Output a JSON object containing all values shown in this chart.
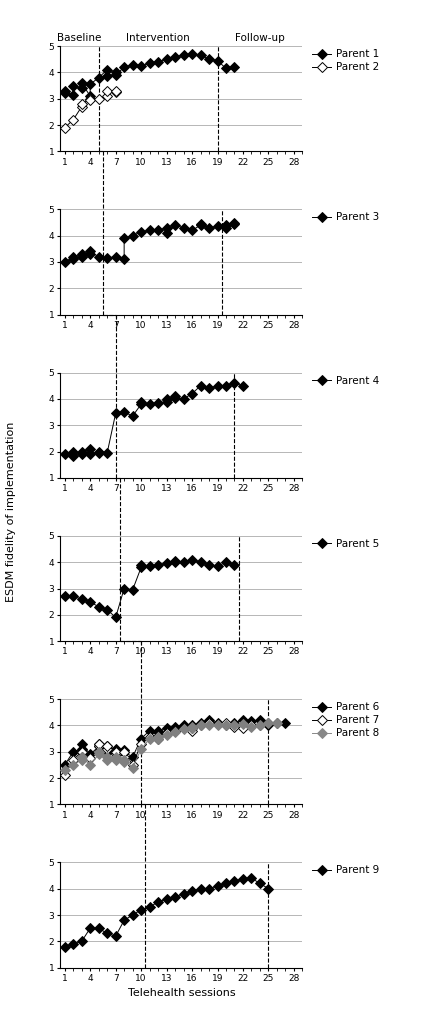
{
  "panels": [
    {
      "id": 1,
      "baseline_end": 5.0,
      "followup_start": 19.0,
      "bracket_x": 5.0,
      "series": [
        {
          "label": "Parent 1",
          "filled": true,
          "color": "black",
          "x": [
            1,
            1,
            2,
            2,
            3,
            3,
            4,
            4,
            5,
            6,
            6,
            7,
            7,
            8,
            9,
            10,
            11,
            12,
            13,
            14,
            15,
            16,
            17,
            18,
            19,
            20,
            21
          ],
          "y": [
            3.3,
            3.2,
            3.15,
            3.5,
            3.4,
            3.6,
            3.1,
            3.55,
            3.8,
            4.1,
            3.85,
            4.0,
            3.9,
            4.2,
            4.3,
            4.25,
            4.35,
            4.4,
            4.5,
            4.6,
            4.65,
            4.7,
            4.65,
            4.5,
            4.45,
            4.15,
            4.2
          ]
        },
        {
          "label": "Parent 2",
          "filled": false,
          "color": "black",
          "x": [
            1,
            2,
            3,
            3,
            4,
            4,
            5,
            6,
            6,
            7,
            7
          ],
          "y": [
            1.9,
            2.2,
            2.7,
            2.8,
            3.0,
            2.95,
            3.0,
            3.1,
            3.3,
            3.25,
            3.3
          ]
        }
      ],
      "ylim": [
        1,
        5
      ],
      "yticks": [
        1,
        2,
        3,
        4,
        5
      ],
      "show_top_labels": true,
      "legend_labels": [
        "Parent 1",
        "Parent 2"
      ],
      "legend_filled": [
        true,
        false
      ],
      "legend_gray": [
        false,
        false
      ]
    },
    {
      "id": 2,
      "baseline_end": 5.5,
      "followup_start": 19.5,
      "bracket_x": 5.5,
      "series": [
        {
          "label": "Parent 3",
          "filled": true,
          "color": "black",
          "x": [
            1,
            2,
            2,
            3,
            3,
            4,
            4,
            5,
            6,
            7,
            8,
            8,
            9,
            10,
            11,
            12,
            13,
            13,
            14,
            15,
            16,
            17,
            17,
            18,
            19,
            20,
            20,
            21,
            21
          ],
          "y": [
            3.0,
            3.1,
            3.2,
            3.3,
            3.2,
            3.3,
            3.4,
            3.2,
            3.15,
            3.2,
            3.1,
            3.9,
            4.0,
            4.15,
            4.2,
            4.2,
            4.3,
            4.1,
            4.4,
            4.3,
            4.2,
            4.4,
            4.45,
            4.3,
            4.35,
            4.3,
            4.4,
            4.5,
            4.45
          ]
        }
      ],
      "ylim": [
        1,
        5
      ],
      "yticks": [
        1,
        2,
        3,
        4,
        5
      ],
      "show_top_labels": false,
      "legend_labels": [
        "Parent 3"
      ],
      "legend_filled": [
        true
      ],
      "legend_gray": [
        false
      ]
    },
    {
      "id": 3,
      "baseline_end": 7.0,
      "followup_start": 21.0,
      "bracket_x": 7.0,
      "series": [
        {
          "label": "Parent 4",
          "filled": true,
          "color": "black",
          "x": [
            1,
            2,
            2,
            3,
            3,
            4,
            4,
            5,
            5,
            6,
            7,
            8,
            9,
            10,
            10,
            11,
            12,
            13,
            13,
            14,
            14,
            15,
            16,
            17,
            18,
            19,
            20,
            21,
            22
          ],
          "y": [
            1.9,
            2.0,
            1.85,
            1.9,
            2.0,
            2.1,
            1.9,
            2.0,
            1.95,
            1.95,
            3.45,
            3.5,
            3.35,
            3.8,
            3.9,
            3.8,
            3.85,
            4.0,
            3.9,
            4.1,
            4.05,
            4.0,
            4.2,
            4.5,
            4.4,
            4.5,
            4.5,
            4.6,
            4.5
          ]
        }
      ],
      "ylim": [
        1,
        5
      ],
      "yticks": [
        1,
        2,
        3,
        4,
        5
      ],
      "show_top_labels": false,
      "legend_labels": [
        "Parent 4"
      ],
      "legend_filled": [
        true
      ],
      "legend_gray": [
        false
      ]
    },
    {
      "id": 4,
      "baseline_end": 7.5,
      "followup_start": 21.5,
      "bracket_x": 7.5,
      "series": [
        {
          "label": "Parent 5",
          "filled": true,
          "color": "black",
          "x": [
            1,
            2,
            3,
            4,
            5,
            6,
            7,
            8,
            9,
            10,
            10,
            11,
            12,
            13,
            14,
            14,
            15,
            16,
            17,
            18,
            19,
            20,
            21
          ],
          "y": [
            2.7,
            2.7,
            2.6,
            2.5,
            2.3,
            2.2,
            1.9,
            3.0,
            2.95,
            3.8,
            3.9,
            3.85,
            3.9,
            3.95,
            4.0,
            4.05,
            4.0,
            4.1,
            4.0,
            3.9,
            3.85,
            4.0,
            3.9
          ]
        }
      ],
      "ylim": [
        1,
        5
      ],
      "yticks": [
        1,
        2,
        3,
        4,
        5
      ],
      "show_top_labels": false,
      "legend_labels": [
        "Parent 5"
      ],
      "legend_filled": [
        true
      ],
      "legend_gray": [
        false
      ]
    },
    {
      "id": 5,
      "baseline_end": 10.0,
      "followup_start": 25.0,
      "bracket_x": 10.0,
      "series": [
        {
          "label": "Parent 6",
          "filled": true,
          "color": "black",
          "x": [
            1,
            2,
            3,
            3,
            4,
            5,
            5,
            6,
            6,
            7,
            7,
            8,
            8,
            9,
            10,
            11,
            12,
            12,
            13,
            14,
            15,
            16,
            16,
            17,
            18,
            19,
            20,
            21,
            22,
            23,
            24,
            25,
            26,
            27
          ],
          "y": [
            2.5,
            3.0,
            3.1,
            3.3,
            2.9,
            3.2,
            3.3,
            3.0,
            3.2,
            3.1,
            3.0,
            3.05,
            3.0,
            2.8,
            3.5,
            3.8,
            3.75,
            3.8,
            3.9,
            3.95,
            4.0,
            3.9,
            4.0,
            4.1,
            4.2,
            4.1,
            4.0,
            4.1,
            4.2,
            4.15,
            4.2,
            4.0,
            4.1,
            4.1
          ]
        },
        {
          "label": "Parent 7",
          "filled": false,
          "color": "black",
          "x": [
            1,
            2,
            3,
            3,
            4,
            5,
            5,
            6,
            6,
            7,
            7,
            8,
            8,
            9,
            10,
            11,
            12,
            12,
            13,
            14,
            15,
            16,
            16,
            17,
            18,
            19,
            20,
            21,
            22,
            23,
            24,
            25
          ],
          "y": [
            2.1,
            2.7,
            3.0,
            2.8,
            2.75,
            3.2,
            3.3,
            3.1,
            3.2,
            2.9,
            3.0,
            2.8,
            3.0,
            2.5,
            3.3,
            3.55,
            3.5,
            3.6,
            3.7,
            3.8,
            3.9,
            3.8,
            3.9,
            4.0,
            4.1,
            4.05,
            4.1,
            3.95,
            3.9,
            4.0,
            4.0,
            4.1
          ]
        },
        {
          "label": "Parent 8",
          "filled": true,
          "color": "gray",
          "x": [
            1,
            2,
            3,
            3,
            4,
            5,
            5,
            6,
            6,
            7,
            7,
            8,
            8,
            9,
            10,
            11,
            12,
            12,
            13,
            14,
            15,
            16,
            16,
            17,
            18,
            19,
            20,
            21,
            22,
            23,
            24,
            25,
            26
          ],
          "y": [
            2.3,
            2.5,
            2.7,
            2.8,
            2.5,
            2.9,
            3.0,
            2.8,
            2.7,
            2.7,
            2.8,
            2.6,
            2.7,
            2.4,
            3.1,
            3.5,
            3.5,
            3.55,
            3.65,
            3.75,
            3.85,
            3.9,
            3.95,
            4.0,
            4.0,
            4.0,
            4.0,
            4.0,
            4.05,
            3.95,
            4.0,
            4.1,
            4.1
          ]
        }
      ],
      "ylim": [
        1,
        5
      ],
      "yticks": [
        1,
        2,
        3,
        4,
        5
      ],
      "show_top_labels": false,
      "legend_labels": [
        "Parent 6",
        "Parent 7",
        "Parent 8"
      ],
      "legend_filled": [
        true,
        false,
        true
      ],
      "legend_gray": [
        false,
        false,
        true
      ]
    },
    {
      "id": 6,
      "baseline_end": 10.5,
      "followup_start": 25.0,
      "bracket_x": 10.5,
      "series": [
        {
          "label": "Parent 9",
          "filled": true,
          "color": "black",
          "x": [
            1,
            2,
            3,
            4,
            5,
            6,
            7,
            8,
            9,
            10,
            11,
            12,
            13,
            14,
            15,
            16,
            17,
            18,
            19,
            20,
            21,
            22,
            23,
            24,
            25
          ],
          "y": [
            1.8,
            1.9,
            2.0,
            2.5,
            2.5,
            2.3,
            2.2,
            2.8,
            3.0,
            3.2,
            3.3,
            3.5,
            3.6,
            3.7,
            3.8,
            3.9,
            4.0,
            4.0,
            4.1,
            4.2,
            4.3,
            4.35,
            4.4,
            4.2,
            4.0
          ]
        }
      ],
      "ylim": [
        1,
        5
      ],
      "yticks": [
        1,
        2,
        3,
        4,
        5
      ],
      "show_top_labels": false,
      "legend_labels": [
        "Parent 9"
      ],
      "legend_filled": [
        true
      ],
      "legend_gray": [
        false
      ]
    }
  ],
  "xlabel": "Telehealth sessions",
  "ylabel": "ESDM fidelity of implementation",
  "xticks": [
    1,
    4,
    7,
    10,
    13,
    16,
    19,
    22,
    25,
    28
  ],
  "xlim": [
    0.5,
    29
  ],
  "phase_labels": [
    "Baseline",
    "Intervention",
    "Follow-up"
  ],
  "marker_size": 5
}
